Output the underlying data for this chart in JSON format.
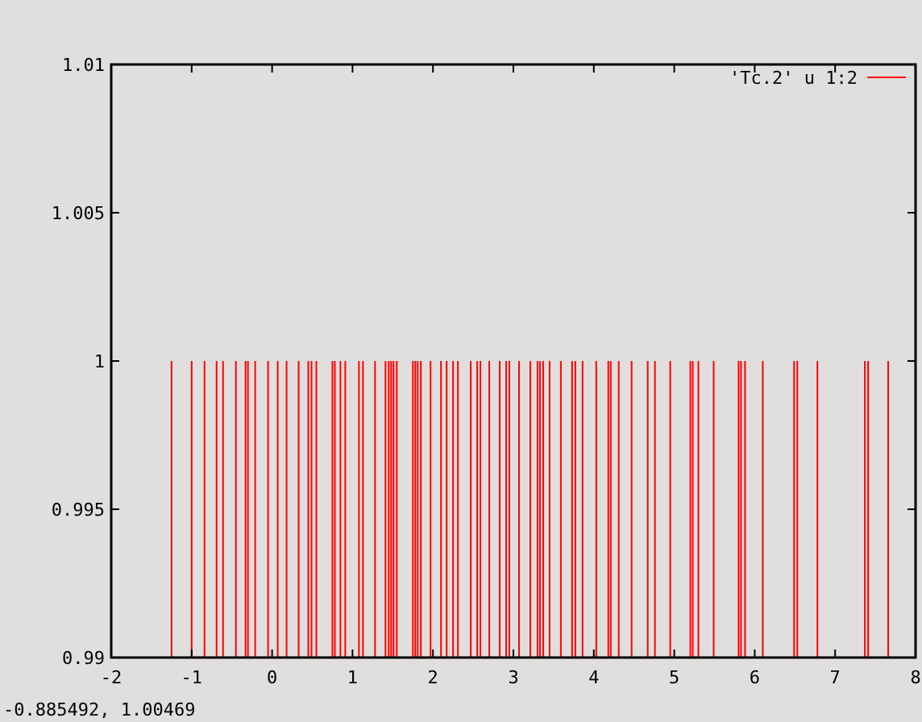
{
  "chart_data": {
    "type": "bar",
    "x": [
      -1.25,
      -1.0,
      -0.84,
      -0.69,
      -0.61,
      -0.45,
      -0.33,
      -0.3,
      -0.21,
      -0.05,
      0.07,
      0.18,
      0.33,
      0.45,
      0.49,
      0.55,
      0.75,
      0.78,
      0.85,
      0.91,
      1.08,
      1.13,
      1.28,
      1.41,
      1.45,
      1.48,
      1.51,
      1.55,
      1.75,
      1.78,
      1.81,
      1.85,
      1.97,
      2.1,
      2.17,
      2.25,
      2.31,
      2.47,
      2.55,
      2.59,
      2.7,
      2.83,
      2.91,
      2.95,
      3.07,
      3.21,
      3.3,
      3.33,
      3.37,
      3.45,
      3.59,
      3.73,
      3.77,
      3.86,
      4.03,
      4.18,
      4.21,
      4.31,
      4.47,
      4.67,
      4.76,
      4.95,
      5.2,
      5.23,
      5.3,
      5.49,
      5.8,
      5.83,
      5.88,
      6.1,
      6.49,
      6.53,
      6.78,
      7.37,
      7.41,
      7.66
    ],
    "series": [
      {
        "name": "'Tc.2' u 1:2",
        "color": "#ff0000",
        "values": [
          1,
          1,
          1,
          1,
          1,
          1,
          1,
          1,
          1,
          1,
          1,
          1,
          1,
          1,
          1,
          1,
          1,
          1,
          1,
          1,
          1,
          1,
          1,
          1,
          1,
          1,
          1,
          1,
          1,
          1,
          1,
          1,
          1,
          1,
          1,
          1,
          1,
          1,
          1,
          1,
          1,
          1,
          1,
          1,
          1,
          1,
          1,
          1,
          1,
          1,
          1,
          1,
          1,
          1,
          1,
          1,
          1,
          1,
          1,
          1,
          1,
          1,
          1,
          1,
          1,
          1,
          1,
          1,
          1,
          1,
          1,
          1,
          1,
          1,
          1,
          1
        ]
      }
    ],
    "xlim": [
      -2,
      8
    ],
    "xticks": [
      -2,
      -1,
      0,
      1,
      2,
      3,
      4,
      5,
      6,
      7,
      8
    ],
    "ylim": [
      0.99,
      1.01
    ],
    "yticks": [
      0.99,
      0.995,
      1,
      1.005,
      1.01
    ],
    "legend": "top right",
    "annotations": [
      "-0.885492,  1.00469"
    ]
  }
}
